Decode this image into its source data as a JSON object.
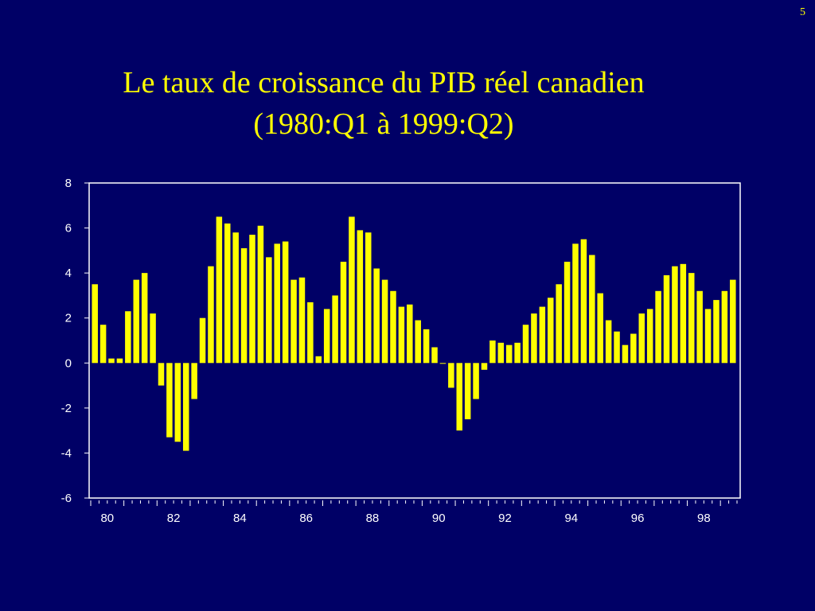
{
  "page": {
    "number": "5"
  },
  "title": {
    "line1": "Le taux de croissance du PIB réel canadien",
    "line2": "(1980:Q1 à 1999:Q2)"
  },
  "colors": {
    "background": "#000066",
    "bars": "#ffff00",
    "title": "#ffff00",
    "axis": "#ffffff"
  },
  "chart_data": {
    "type": "bar",
    "title": "",
    "xlabel": "",
    "ylabel": "",
    "ylim": [
      -6,
      8
    ],
    "yticks": [
      8,
      6,
      4,
      2,
      0,
      -2,
      -4,
      -6
    ],
    "xtick_labels": [
      "80",
      "82",
      "84",
      "86",
      "88",
      "90",
      "92",
      "94",
      "96",
      "98"
    ],
    "x_start": "1980:Q1",
    "x_end": "1999:Q2",
    "grid": false,
    "values": [
      3.5,
      1.7,
      0.2,
      0.2,
      2.3,
      3.7,
      4.0,
      2.2,
      -1.0,
      -3.3,
      -3.5,
      -3.9,
      -1.6,
      2.0,
      4.3,
      6.5,
      6.2,
      5.8,
      5.1,
      5.7,
      6.1,
      4.7,
      5.3,
      5.4,
      3.7,
      3.8,
      2.7,
      0.3,
      2.4,
      3.0,
      4.5,
      6.5,
      5.9,
      5.8,
      4.2,
      3.7,
      3.2,
      2.5,
      2.6,
      1.9,
      1.5,
      0.7,
      0.0,
      -1.1,
      -3.0,
      -2.5,
      -1.6,
      -0.3,
      1.0,
      0.9,
      0.8,
      0.9,
      1.7,
      2.2,
      2.5,
      2.9,
      3.5,
      4.5,
      5.3,
      5.5,
      4.8,
      3.1,
      1.9,
      1.4,
      0.8,
      1.3,
      2.2,
      2.4,
      3.2,
      3.9,
      4.3,
      4.4,
      4.0,
      3.2,
      2.4,
      2.8,
      3.2,
      3.7
    ]
  }
}
